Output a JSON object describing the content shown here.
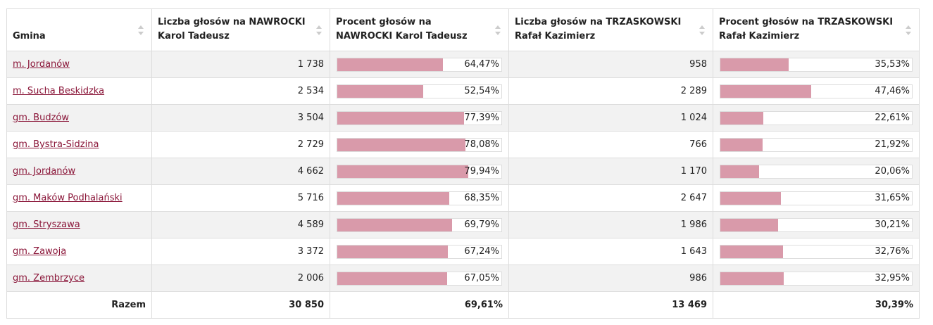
{
  "headers": [
    {
      "label": "Gmina"
    },
    {
      "label": "Liczba głosów na NAWROCKI Karol Tadeusz"
    },
    {
      "label": "Procent głosów na NAWROCKI Karol Tadeusz"
    },
    {
      "label": "Liczba głosów na TRZASKOWSKI Rafał Kazimierz"
    },
    {
      "label": "Procent głosów na TRZASKOWSKI Rafał Kazimierz"
    }
  ],
  "rows": [
    {
      "gmina": "m. Jordanów",
      "n_votes": "1 738",
      "n_pct_label": "64,47%",
      "n_pct": 64.47,
      "t_votes": "958",
      "t_pct_label": "35,53%",
      "t_pct": 35.53
    },
    {
      "gmina": "m. Sucha Beskidzka",
      "n_votes": "2 534",
      "n_pct_label": "52,54%",
      "n_pct": 52.54,
      "t_votes": "2 289",
      "t_pct_label": "47,46%",
      "t_pct": 47.46
    },
    {
      "gmina": "gm. Budzów",
      "n_votes": "3 504",
      "n_pct_label": "77,39%",
      "n_pct": 77.39,
      "t_votes": "1 024",
      "t_pct_label": "22,61%",
      "t_pct": 22.61
    },
    {
      "gmina": "gm. Bystra-Sidzina",
      "n_votes": "2 729",
      "n_pct_label": "78,08%",
      "n_pct": 78.08,
      "t_votes": "766",
      "t_pct_label": "21,92%",
      "t_pct": 21.92
    },
    {
      "gmina": "gm. Jordanów",
      "n_votes": "4 662",
      "n_pct_label": "79,94%",
      "n_pct": 79.94,
      "t_votes": "1 170",
      "t_pct_label": "20,06%",
      "t_pct": 20.06
    },
    {
      "gmina": "gm. Maków Podhalański",
      "n_votes": "5 716",
      "n_pct_label": "68,35%",
      "n_pct": 68.35,
      "t_votes": "2 647",
      "t_pct_label": "31,65%",
      "t_pct": 31.65
    },
    {
      "gmina": "gm. Stryszawa",
      "n_votes": "4 589",
      "n_pct_label": "69,79%",
      "n_pct": 69.79,
      "t_votes": "1 986",
      "t_pct_label": "30,21%",
      "t_pct": 30.21
    },
    {
      "gmina": "gm. Zawoja",
      "n_votes": "3 372",
      "n_pct_label": "67,24%",
      "n_pct": 67.24,
      "t_votes": "1 643",
      "t_pct_label": "32,76%",
      "t_pct": 32.76
    },
    {
      "gmina": "gm. Zembrzyce",
      "n_votes": "2 006",
      "n_pct_label": "67,05%",
      "n_pct": 67.05,
      "t_votes": "986",
      "t_pct_label": "32,95%",
      "t_pct": 32.95
    }
  ],
  "totals": {
    "label": "Razem",
    "n_votes": "30 850",
    "n_pct_label": "69,61%",
    "t_votes": "13 469",
    "t_pct_label": "30,39%"
  },
  "icons": {
    "sort": "sort-arrows-icon"
  },
  "colors": {
    "link": "#8a1538",
    "bar_fill": "#d99aaa",
    "row_alt": "#f2f2f2"
  }
}
